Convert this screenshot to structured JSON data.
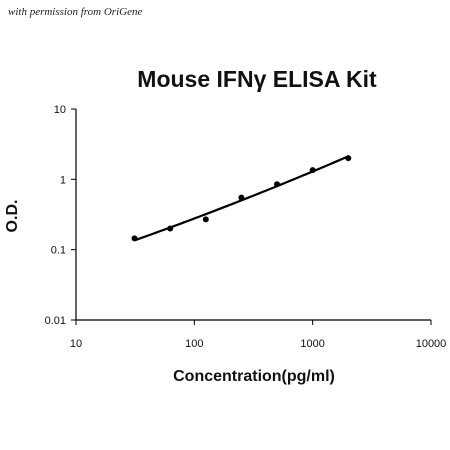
{
  "watermark": "with permission from OriGene",
  "chart_data": {
    "type": "scatter",
    "title": "Mouse IFNγ ELISA Kit",
    "xlabel": "Concentration(pg/ml)",
    "ylabel": "O.D.",
    "x_scale": "log",
    "y_scale": "log",
    "xlim": [
      10,
      10000
    ],
    "ylim": [
      0.01,
      10
    ],
    "x_ticks": [
      "10",
      "100",
      "1000",
      "10000"
    ],
    "y_ticks": [
      "0.01",
      "0.1",
      "1",
      "10"
    ],
    "grid": false,
    "legend": "none",
    "series": [
      {
        "x": [
          31.25,
          62.5,
          125,
          250,
          500,
          1000,
          2000
        ],
        "y": [
          0.145,
          0.2,
          0.27,
          0.55,
          0.85,
          1.35,
          2.0
        ],
        "marker": "circle",
        "trendline": true
      }
    ],
    "colors": {
      "line": "#000000",
      "marker": "#000000"
    }
  }
}
